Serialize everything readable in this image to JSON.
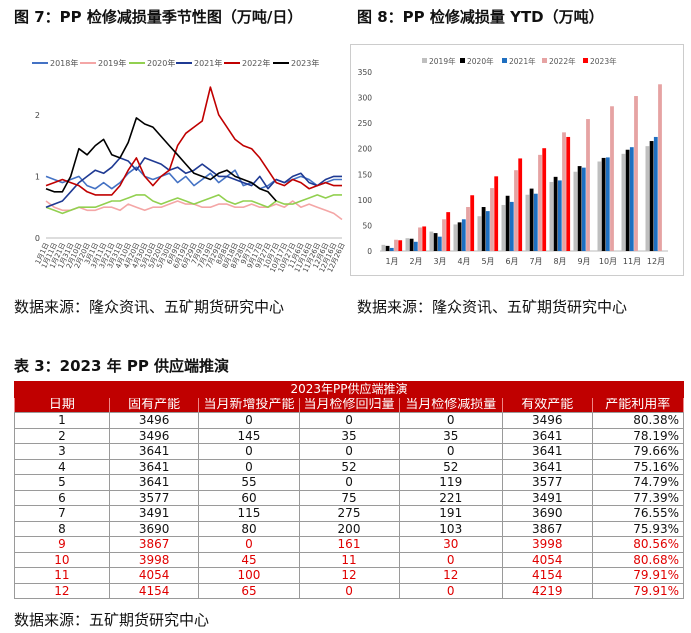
{
  "fig7": {
    "title": "图 7：PP 检修减损量季节性图（万吨/日）",
    "source": "数据来源：隆众资讯、五矿期货研究中心",
    "chart_data": {
      "type": "line",
      "title": "",
      "ylim": [
        0,
        2.5
      ],
      "y_ticks": [
        "0",
        "1",
        "2"
      ],
      "x_ticks": [
        "1月1日",
        "1月11日",
        "1月21日",
        "1月31日",
        "2月10日",
        "2月20日",
        "3月1日",
        "3月11日",
        "3月21日",
        "3月31日",
        "4月10日",
        "4月20日",
        "4月30日",
        "5月10日",
        "5月20日",
        "5月30日",
        "6月9日",
        "6月19日",
        "6月29日",
        "7月9日",
        "7月19日",
        "7月29日",
        "8月8日",
        "8月18日",
        "8月28日",
        "9月7日",
        "9月17日",
        "9月27日",
        "10月7日",
        "10月17日",
        "10月27日",
        "11月6日",
        "11月16日",
        "11月26日",
        "12月6日",
        "12月16日",
        "12月26日"
      ],
      "series": [
        {
          "name": "2018年",
          "color": "#4472c4",
          "values": [
            1.0,
            0.95,
            0.9,
            0.95,
            1.0,
            0.85,
            0.8,
            0.9,
            0.8,
            0.9,
            1.05,
            1.15,
            1.0,
            0.95,
            1.0,
            1.05,
            0.9,
            1.0,
            0.85,
            0.95,
            1.05,
            0.9,
            1.0,
            1.1,
            0.85,
            0.9,
            0.8,
            0.85,
            0.95,
            0.9,
            0.95,
            1.0,
            0.95,
            0.85,
            0.9,
            0.95,
            0.95
          ]
        },
        {
          "name": "2019年",
          "color": "#f4a6a6",
          "values": [
            0.6,
            0.5,
            0.45,
            0.45,
            0.5,
            0.45,
            0.45,
            0.5,
            0.5,
            0.45,
            0.55,
            0.5,
            0.45,
            0.5,
            0.5,
            0.55,
            0.6,
            0.55,
            0.55,
            0.5,
            0.5,
            0.55,
            0.55,
            0.5,
            0.5,
            0.55,
            0.5,
            0.5,
            0.55,
            0.5,
            0.6,
            0.5,
            0.55,
            0.5,
            0.45,
            0.4,
            0.3
          ]
        },
        {
          "name": "2020年",
          "color": "#92d050",
          "values": [
            0.5,
            0.45,
            0.4,
            0.45,
            0.5,
            0.5,
            0.5,
            0.55,
            0.6,
            0.6,
            0.65,
            0.7,
            0.7,
            0.6,
            0.55,
            0.6,
            0.65,
            0.6,
            0.55,
            0.6,
            0.65,
            0.7,
            0.6,
            0.55,
            0.6,
            0.6,
            0.55,
            0.5,
            0.6,
            0.55,
            0.55,
            0.6,
            0.65,
            0.7,
            0.65,
            0.7,
            0.7
          ]
        },
        {
          "name": "2021年",
          "color": "#1f3a93",
          "values": [
            0.5,
            0.55,
            0.6,
            0.75,
            0.9,
            1.0,
            1.1,
            1.05,
            1.15,
            1.3,
            1.25,
            1.1,
            1.3,
            1.25,
            1.2,
            1.1,
            1.15,
            1.05,
            1.1,
            1.2,
            1.1,
            1.0,
            1.0,
            0.95,
            0.9,
            0.85,
            1.0,
            0.8,
            0.95,
            0.9,
            1.0,
            1.05,
            0.9,
            0.85,
            0.95,
            1.0,
            1.0
          ]
        },
        {
          "name": "2022年",
          "color": "#c00000",
          "values": [
            0.85,
            0.9,
            0.95,
            0.9,
            0.85,
            0.75,
            0.7,
            0.7,
            0.7,
            0.85,
            1.1,
            1.3,
            1.0,
            0.85,
            1.0,
            1.1,
            1.5,
            1.7,
            1.8,
            1.9,
            2.45,
            2.0,
            1.8,
            1.6,
            1.5,
            1.45,
            1.3,
            1.1,
            0.9,
            0.85,
            0.95,
            0.9,
            0.8,
            0.85,
            0.9,
            0.85,
            0.85
          ]
        },
        {
          "name": "2023年",
          "color": "#000000",
          "values": [
            0.8,
            0.75,
            0.75,
            1.0,
            1.45,
            1.35,
            1.5,
            1.6,
            1.35,
            1.3,
            1.55,
            1.95,
            1.85,
            1.8,
            1.65,
            1.5,
            1.35,
            1.2,
            1.05,
            1.0,
            0.95,
            1.05,
            1.1,
            1.0,
            0.95,
            0.9,
            0.8,
            0.75,
            0.6,
            null,
            null,
            null,
            null,
            null,
            null,
            null,
            null
          ]
        }
      ]
    }
  },
  "fig8": {
    "title": "图 8：PP 检修减损量 YTD（万吨）",
    "source": "数据来源：隆众资讯、五矿期货研究中心",
    "chart_data": {
      "type": "bar",
      "title": "",
      "ylim": [
        0,
        350
      ],
      "y_ticks": [
        "0",
        "50",
        "100",
        "150",
        "200",
        "250",
        "300",
        "350"
      ],
      "categories": [
        "1月",
        "2月",
        "3月",
        "4月",
        "5月",
        "6月",
        "7月",
        "8月",
        "9月",
        "10月",
        "11月",
        "12月"
      ],
      "series": [
        {
          "name": "2019年",
          "color": "#bfbfbf",
          "values": [
            12,
            25,
            38,
            52,
            68,
            90,
            110,
            135,
            155,
            175,
            190,
            205
          ]
        },
        {
          "name": "2020年",
          "color": "#000000",
          "values": [
            10,
            24,
            35,
            56,
            86,
            108,
            122,
            145,
            166,
            182,
            198,
            215
          ]
        },
        {
          "name": "2021年",
          "color": "#1f6fc0",
          "values": [
            6,
            18,
            28,
            62,
            78,
            96,
            112,
            138,
            163,
            183,
            203,
            223
          ]
        },
        {
          "name": "2022年",
          "color": "#e6a3a3",
          "values": [
            22,
            46,
            62,
            86,
            123,
            158,
            188,
            232,
            258,
            283,
            303,
            326
          ]
        },
        {
          "name": "2023年",
          "color": "#ff0000",
          "values": [
            21,
            48,
            76,
            109,
            146,
            181,
            201,
            223,
            null,
            null,
            null,
            null
          ]
        }
      ]
    }
  },
  "table": {
    "title": "表 3：2023 年 PP 供应端推演",
    "caption": "2023年PP供应端推演",
    "headers": [
      "日期",
      "固有产能",
      "当月新增投产能",
      "当月检修回归量",
      "当月检修减损量",
      "有效产能",
      "产能利用率"
    ],
    "rows": [
      [
        "1",
        "3496",
        "0",
        "0",
        "0",
        "3496",
        "80.38%"
      ],
      [
        "2",
        "3496",
        "145",
        "35",
        "35",
        "3641",
        "78.19%"
      ],
      [
        "3",
        "3641",
        "0",
        "0",
        "0",
        "3641",
        "79.66%"
      ],
      [
        "4",
        "3641",
        "0",
        "52",
        "52",
        "3641",
        "75.16%"
      ],
      [
        "5",
        "3641",
        "55",
        "0",
        "119",
        "3577",
        "74.79%"
      ],
      [
        "6",
        "3577",
        "60",
        "75",
        "221",
        "3491",
        "77.39%"
      ],
      [
        "7",
        "3491",
        "115",
        "275",
        "191",
        "3690",
        "76.55%"
      ],
      [
        "8",
        "3690",
        "80",
        "200",
        "103",
        "3867",
        "75.93%"
      ],
      [
        "9",
        "3867",
        "0",
        "161",
        "30",
        "3998",
        "80.56%"
      ],
      [
        "10",
        "3998",
        "45",
        "11",
        "0",
        "4054",
        "80.68%"
      ],
      [
        "11",
        "4054",
        "100",
        "12",
        "12",
        "4154",
        "79.91%"
      ],
      [
        "12",
        "4154",
        "65",
        "0",
        "0",
        "4219",
        "79.91%"
      ]
    ],
    "red_from_row": 9,
    "source": "数据来源：五矿期货研究中心"
  }
}
